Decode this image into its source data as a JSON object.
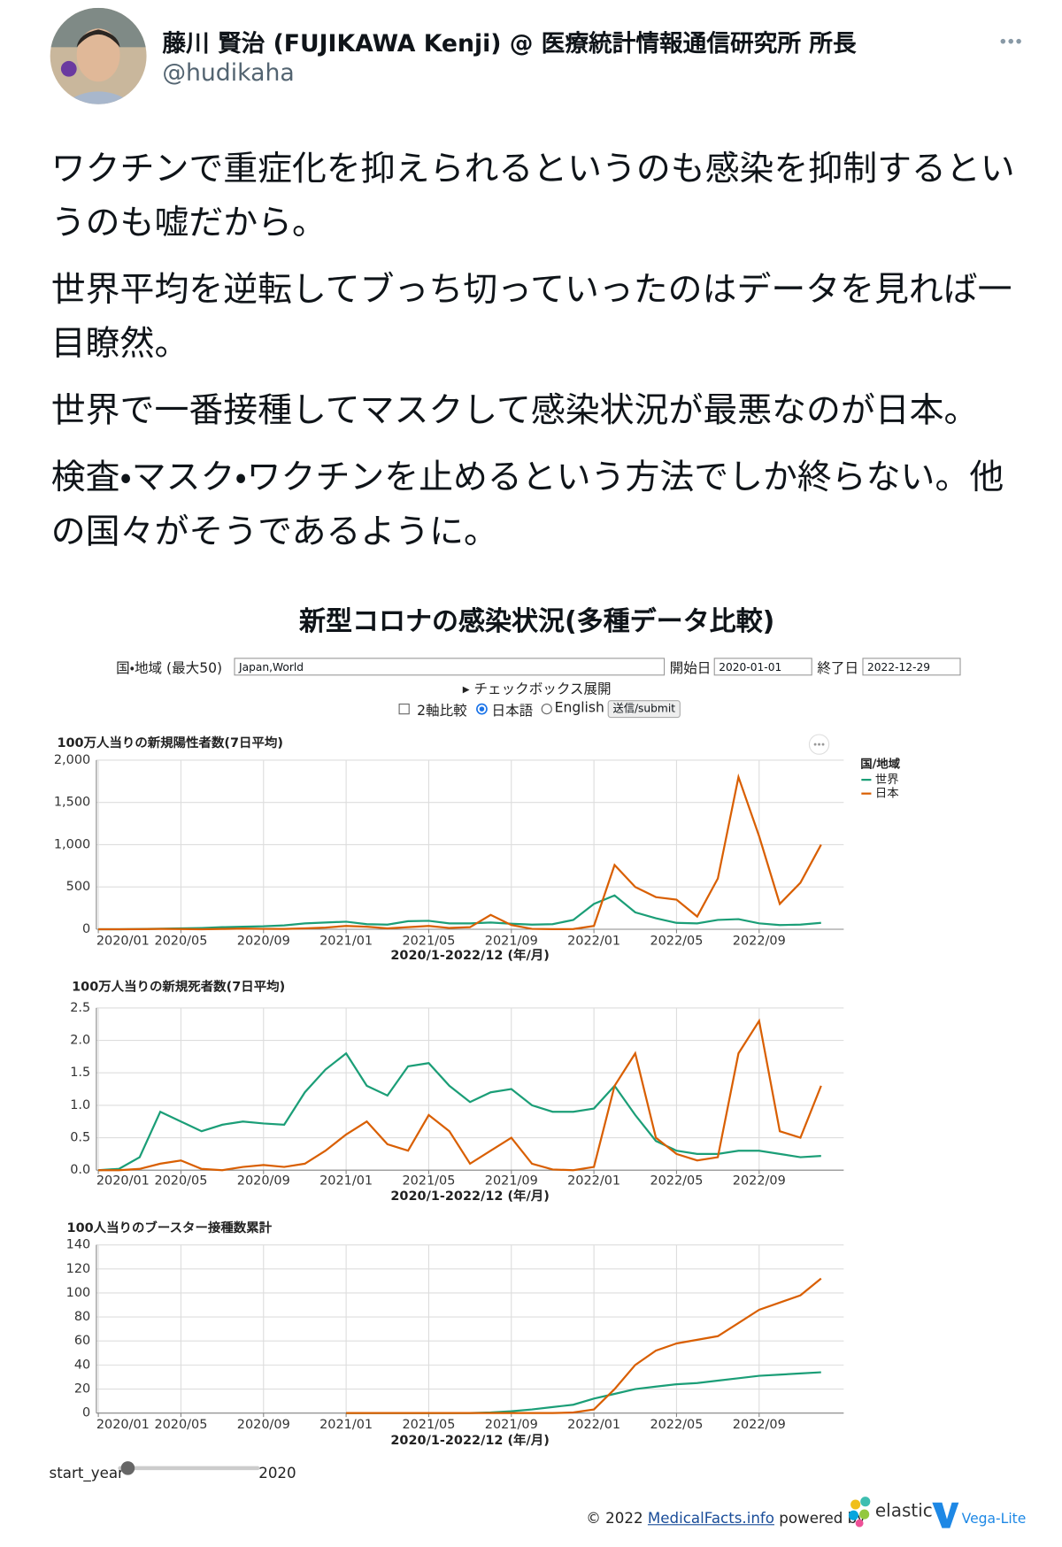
{
  "tweet": {
    "name": "藤川 賢治 (FUJIKAWA Kenji) @ 医療統計情報通信研究所 所長",
    "handle": "@hudikaha",
    "paragraphs": [
      "ワクチンで重症化を抑えられるというのも感染を抑制するというのも嘘だから。",
      "世界平均を逆転してブっち切っていったのはデータを見れば一目瞭然。",
      "世界で一番接種してマスクして感染状況が最悪なのが日本。",
      "検査・マスク・ワクチンを止めるという方法でしか終らない。他の国々がそうであるように。"
    ]
  },
  "app": {
    "title": "新型コロナの感染状況(多種データ比較)",
    "form": {
      "region_label": "国・地域 (最大50)",
      "region_value": "Japan,World",
      "start_label": "開始日",
      "start_value": "2020-01-01",
      "end_label": "終了日",
      "end_value": "2022-12-29",
      "expand": "▸ チェックボックス展開",
      "dual_axis": "2軸比較",
      "lang_ja": "日本語",
      "lang_en": "English",
      "submit": "送信/submit"
    },
    "slider": {
      "label": "start_year",
      "value": 2020
    },
    "footer": {
      "copyright": "© 2022",
      "link": "MedicalFacts.info",
      "powered": "powered by",
      "elastic": "elastic",
      "vega": "Vega-Lite"
    }
  },
  "chart_data": [
    {
      "type": "line",
      "title": "100万人当りの新規陽性者数(7日平均)",
      "xlabel": "2020/1-2022/12 (年/月)",
      "legend_title": "国/地域",
      "grid": true,
      "x": [
        "2020/01",
        "2020/02",
        "2020/03",
        "2020/04",
        "2020/05",
        "2020/06",
        "2020/07",
        "2020/08",
        "2020/09",
        "2020/10",
        "2020/11",
        "2020/12",
        "2021/01",
        "2021/02",
        "2021/03",
        "2021/04",
        "2021/05",
        "2021/06",
        "2021/07",
        "2021/08",
        "2021/09",
        "2021/10",
        "2021/11",
        "2021/12",
        "2022/01",
        "2022/02",
        "2022/03",
        "2022/04",
        "2022/05",
        "2022/06",
        "2022/07",
        "2022/08",
        "2022/09",
        "2022/10",
        "2022/11",
        "2022/12"
      ],
      "xticks": [
        "2020/01",
        "2020/05",
        "2020/09",
        "2021/01",
        "2021/05",
        "2021/09",
        "2022/01",
        "2022/05",
        "2022/09"
      ],
      "ylim": [
        0,
        2000
      ],
      "yticks": [
        0,
        500,
        {
          "value": 1000,
          "label": "1,000"
        },
        {
          "value": 1500,
          "label": "1,500"
        },
        {
          "value": 2000,
          "label": "2,000"
        }
      ],
      "series": [
        {
          "name": "世界",
          "color": "#1b9e77",
          "values": [
            0,
            0,
            2,
            7,
            10,
            15,
            25,
            30,
            35,
            45,
            70,
            80,
            90,
            60,
            55,
            95,
            100,
            70,
            70,
            80,
            65,
            55,
            60,
            110,
            300,
            400,
            200,
            130,
            75,
            70,
            110,
            120,
            70,
            50,
            55,
            75
          ]
        },
        {
          "name": "日本",
          "color": "#d95f02",
          "values": [
            0,
            0,
            1,
            3,
            2,
            0,
            3,
            8,
            5,
            3,
            10,
            20,
            40,
            30,
            10,
            25,
            40,
            15,
            25,
            170,
            50,
            5,
            1,
            2,
            40,
            760,
            500,
            380,
            350,
            150,
            600,
            1800,
            1100,
            300,
            550,
            1000
          ]
        }
      ]
    },
    {
      "type": "line",
      "title": "100万人当りの新規死者数(7日平均)",
      "xlabel": "2020/1-2022/12 (年/月)",
      "grid": true,
      "x": [
        "2020/01",
        "2020/02",
        "2020/03",
        "2020/04",
        "2020/05",
        "2020/06",
        "2020/07",
        "2020/08",
        "2020/09",
        "2020/10",
        "2020/11",
        "2020/12",
        "2021/01",
        "2021/02",
        "2021/03",
        "2021/04",
        "2021/05",
        "2021/06",
        "2021/07",
        "2021/08",
        "2021/09",
        "2021/10",
        "2021/11",
        "2021/12",
        "2022/01",
        "2022/02",
        "2022/03",
        "2022/04",
        "2022/05",
        "2022/06",
        "2022/07",
        "2022/08",
        "2022/09",
        "2022/10",
        "2022/11",
        "2022/12"
      ],
      "xticks": [
        "2020/01",
        "2020/05",
        "2020/09",
        "2021/01",
        "2021/05",
        "2021/09",
        "2022/01",
        "2022/05",
        "2022/09"
      ],
      "ylim": [
        0,
        2.5
      ],
      "yticks": [
        {
          "value": 0,
          "label": "0.0"
        },
        0.5,
        {
          "value": 1,
          "label": "1.0"
        },
        1.5,
        {
          "value": 2,
          "label": "2.0"
        },
        2.5
      ],
      "series": [
        {
          "name": "世界",
          "color": "#1b9e77",
          "values": [
            0,
            0.02,
            0.2,
            0.9,
            0.75,
            0.6,
            0.7,
            0.75,
            0.72,
            0.7,
            1.2,
            1.55,
            1.8,
            1.3,
            1.15,
            1.6,
            1.65,
            1.3,
            1.05,
            1.2,
            1.25,
            1.0,
            0.9,
            0.9,
            0.95,
            1.3,
            0.85,
            0.45,
            0.3,
            0.25,
            0.25,
            0.3,
            0.3,
            0.25,
            0.2,
            0.22
          ]
        },
        {
          "name": "日本",
          "color": "#d95f02",
          "values": [
            0,
            0,
            0.02,
            0.1,
            0.15,
            0.02,
            0,
            0.05,
            0.08,
            0.05,
            0.1,
            0.3,
            0.55,
            0.75,
            0.4,
            0.3,
            0.85,
            0.6,
            0.1,
            0.3,
            0.5,
            0.1,
            0.01,
            0,
            0.05,
            1.3,
            1.8,
            0.5,
            0.25,
            0.15,
            0.2,
            1.8,
            2.3,
            0.6,
            0.5,
            1.3
          ]
        }
      ]
    },
    {
      "type": "line",
      "title": "100人当りのブースター接種数累計",
      "xlabel": "2020/1-2022/12 (年/月)",
      "grid": true,
      "x": [
        "2020/01",
        "2020/02",
        "2020/03",
        "2020/04",
        "2020/05",
        "2020/06",
        "2020/07",
        "2020/08",
        "2020/09",
        "2020/10",
        "2020/11",
        "2020/12",
        "2021/01",
        "2021/02",
        "2021/03",
        "2021/04",
        "2021/05",
        "2021/06",
        "2021/07",
        "2021/08",
        "2021/09",
        "2021/10",
        "2021/11",
        "2021/12",
        "2022/01",
        "2022/02",
        "2022/03",
        "2022/04",
        "2022/05",
        "2022/06",
        "2022/07",
        "2022/08",
        "2022/09",
        "2022/10",
        "2022/11",
        "2022/12"
      ],
      "xticks": [
        "2020/01",
        "2020/05",
        "2020/09",
        "2021/01",
        "2021/05",
        "2021/09",
        "2022/01",
        "2022/05",
        "2022/09"
      ],
      "ylim": [
        0,
        140
      ],
      "yticks": [
        0,
        20,
        40,
        60,
        80,
        100,
        120,
        140
      ],
      "series": [
        {
          "name": "世界",
          "color": "#1b9e77",
          "values": [
            null,
            null,
            null,
            null,
            null,
            null,
            null,
            null,
            null,
            null,
            null,
            null,
            0,
            0,
            0,
            0,
            0,
            0,
            0,
            0.5,
            1.5,
            3,
            5,
            7,
            12,
            16,
            20,
            22,
            24,
            25,
            27,
            29,
            31,
            32,
            33,
            34
          ]
        },
        {
          "name": "日本",
          "color": "#d95f02",
          "values": [
            null,
            null,
            null,
            null,
            null,
            null,
            null,
            null,
            null,
            null,
            null,
            null,
            0,
            0,
            0,
            0,
            0,
            0,
            0,
            0,
            0,
            0,
            0,
            0.5,
            3,
            20,
            40,
            52,
            58,
            61,
            64,
            75,
            86,
            92,
            98,
            112
          ]
        }
      ]
    }
  ]
}
